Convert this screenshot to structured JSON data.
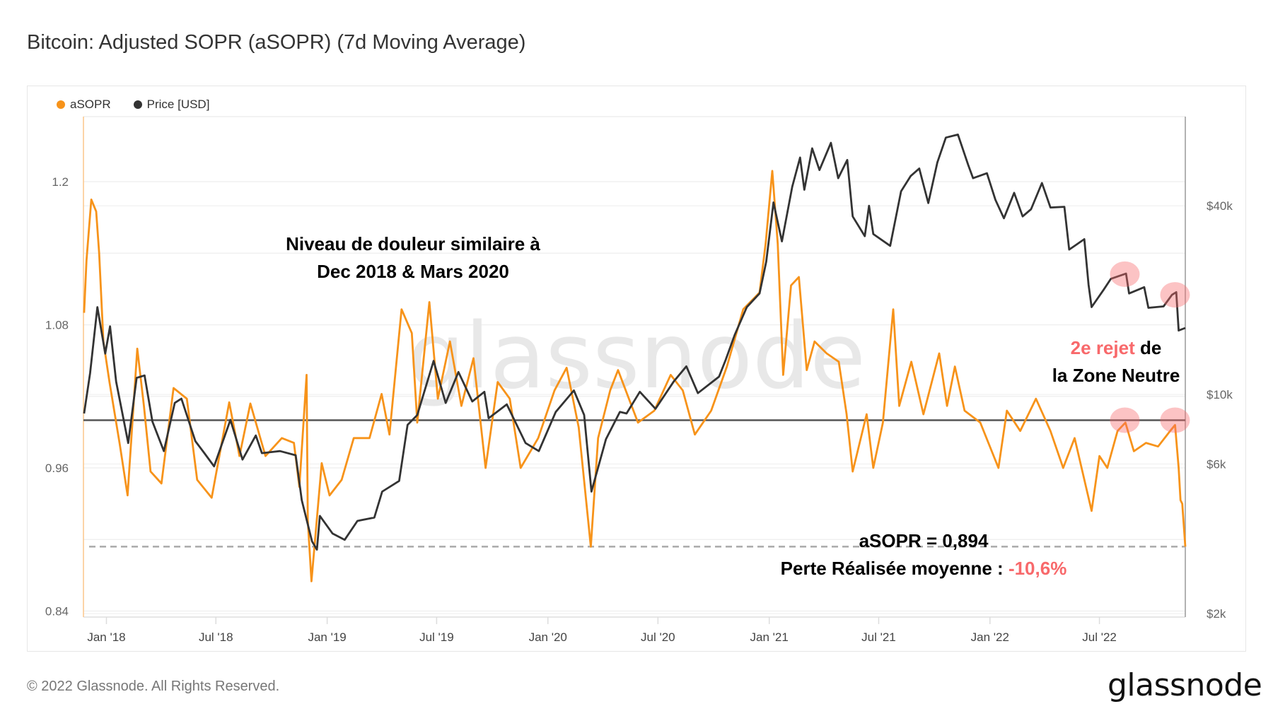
{
  "title": "Bitcoin: Adjusted SOPR (aSOPR) (7d Moving Average)",
  "footer": "© 2022 Glassnode. All Rights Reserved.",
  "logo": "glassnode",
  "watermark": "glassnode",
  "annotations": {
    "pain_line1": "Niveau de douleur similaire à",
    "pain_line2": "Dec 2018 & Mars 2020",
    "reject_red": "2e rejet",
    "reject_black": " de",
    "reject_line2": "la Zone Neutre",
    "asopr_value": "aSOPR = 0,894",
    "loss_label": "Perte Réalisée moyenne : ",
    "loss_value": "-10,6%"
  },
  "colors": {
    "asopr": "#f7931a",
    "price": "#333333",
    "highlight": "#f8696b",
    "accent_red": "#f8696b"
  },
  "chart_data": {
    "type": "line",
    "title": "Bitcoin: Adjusted SOPR (aSOPR) (7d Moving Average)",
    "legend": [
      "aSOPR",
      "Price [USD]"
    ],
    "legend_position": "top-left",
    "grid": true,
    "x_range": [
      "2017-11-24",
      "2022-11-20"
    ],
    "x_ticks": [
      "Jan '18",
      "Jul '18",
      "Jan '19",
      "Jul '19",
      "Jan '20",
      "Jul '20",
      "Jan '21",
      "Jul '21",
      "Jan '22",
      "Jul '22"
    ],
    "x_tick_dates": [
      "2018-01-01",
      "2018-07-01",
      "2019-01-01",
      "2019-07-01",
      "2020-01-01",
      "2020-07-01",
      "2021-01-01",
      "2021-07-01",
      "2022-01-01",
      "2022-07-01"
    ],
    "y_left": {
      "ticks": [
        "1.2",
        "1.08",
        "0.96",
        "0.84"
      ],
      "range": [
        0.835,
        1.2545
      ]
    },
    "y_right": {
      "scale": "log",
      "ticks": [
        "$40k",
        "$10k",
        "$6k",
        "$2k"
      ],
      "tick_values": [
        40000,
        10000,
        6000,
        2000
      ],
      "range": [
        1950,
        77000
      ]
    },
    "reference_lines": [
      {
        "value": 1.0,
        "style": "solid"
      },
      {
        "value": 0.894,
        "style": "dashed"
      }
    ],
    "highlights": [
      {
        "date": "2022-08-12",
        "series": "price",
        "value": 24200
      },
      {
        "date": "2022-11-03",
        "series": "price",
        "value": 20800
      },
      {
        "date": "2022-08-12",
        "series": "asopr",
        "value": 1.0
      },
      {
        "date": "2022-11-03",
        "series": "asopr",
        "value": 1.0
      }
    ],
    "series": [
      {
        "name": "aSOPR",
        "axis": "left",
        "points": [
          [
            "2017-11-25",
            1.09
          ],
          [
            "2017-11-29",
            1.134
          ],
          [
            "2017-12-07",
            1.185
          ],
          [
            "2017-12-15",
            1.175
          ],
          [
            "2017-12-20",
            1.14
          ],
          [
            "2017-12-27",
            1.066
          ],
          [
            "2018-01-06",
            1.032
          ],
          [
            "2018-01-23",
            0.98
          ],
          [
            "2018-02-05",
            0.937
          ],
          [
            "2018-02-21",
            1.06
          ],
          [
            "2018-03-04",
            1.012
          ],
          [
            "2018-03-15",
            0.957
          ],
          [
            "2018-04-02",
            0.947
          ],
          [
            "2018-04-22",
            1.027
          ],
          [
            "2018-05-14",
            1.018
          ],
          [
            "2018-05-31",
            0.95
          ],
          [
            "2018-06-24",
            0.935
          ],
          [
            "2018-07-23",
            1.015
          ],
          [
            "2018-08-09",
            0.97
          ],
          [
            "2018-08-27",
            1.014
          ],
          [
            "2018-09-21",
            0.97
          ],
          [
            "2018-10-18",
            0.985
          ],
          [
            "2018-11-07",
            0.981
          ],
          [
            "2018-11-16",
            0.944
          ],
          [
            "2018-11-28",
            1.038
          ],
          [
            "2018-11-30",
            0.916
          ],
          [
            "2018-12-06",
            0.865
          ],
          [
            "2018-12-23",
            0.964
          ],
          [
            "2019-01-05",
            0.937
          ],
          [
            "2019-01-25",
            0.95
          ],
          [
            "2019-02-14",
            0.985
          ],
          [
            "2019-03-12",
            0.985
          ],
          [
            "2019-04-01",
            1.022
          ],
          [
            "2019-04-14",
            0.988
          ],
          [
            "2019-05-04",
            1.093
          ],
          [
            "2019-05-21",
            1.073
          ],
          [
            "2019-05-30",
            0.998
          ],
          [
            "2019-06-19",
            1.099
          ],
          [
            "2019-07-03",
            1.018
          ],
          [
            "2019-07-23",
            1.066
          ],
          [
            "2019-08-11",
            1.012
          ],
          [
            "2019-08-31",
            1.052
          ],
          [
            "2019-09-20",
            0.96
          ],
          [
            "2019-10-10",
            1.032
          ],
          [
            "2019-10-30",
            1.018
          ],
          [
            "2019-11-17",
            0.96
          ],
          [
            "2019-12-16",
            0.985
          ],
          [
            "2020-01-12",
            1.025
          ],
          [
            "2020-02-01",
            1.044
          ],
          [
            "2020-02-21",
            0.994
          ],
          [
            "2020-03-12",
            0.894
          ],
          [
            "2020-03-24",
            0.985
          ],
          [
            "2020-04-13",
            1.025
          ],
          [
            "2020-04-26",
            1.042
          ],
          [
            "2020-05-29",
            0.998
          ],
          [
            "2020-06-25",
            1.008
          ],
          [
            "2020-07-22",
            1.038
          ],
          [
            "2020-08-11",
            1.025
          ],
          [
            "2020-08-31",
            0.988
          ],
          [
            "2020-09-27",
            1.008
          ],
          [
            "2020-10-23",
            1.045
          ],
          [
            "2020-11-19",
            1.093
          ],
          [
            "2020-12-16",
            1.107
          ],
          [
            "2020-12-26",
            1.148
          ],
          [
            "2021-01-06",
            1.209
          ],
          [
            "2021-01-15",
            1.148
          ],
          [
            "2021-01-24",
            1.038
          ],
          [
            "2021-02-06",
            1.113
          ],
          [
            "2021-02-19",
            1.12
          ],
          [
            "2021-03-04",
            1.042
          ],
          [
            "2021-03-17",
            1.066
          ],
          [
            "2021-04-06",
            1.056
          ],
          [
            "2021-04-26",
            1.049
          ],
          [
            "2021-05-09",
            1.005
          ],
          [
            "2021-05-19",
            0.957
          ],
          [
            "2021-06-11",
            1.005
          ],
          [
            "2021-06-22",
            0.96
          ],
          [
            "2021-07-08",
            0.998
          ],
          [
            "2021-07-25",
            1.093
          ],
          [
            "2021-08-04",
            1.012
          ],
          [
            "2021-08-24",
            1.049
          ],
          [
            "2021-09-13",
            1.005
          ],
          [
            "2021-10-09",
            1.056
          ],
          [
            "2021-10-22",
            1.012
          ],
          [
            "2021-11-04",
            1.045
          ],
          [
            "2021-11-20",
            1.008
          ],
          [
            "2021-12-16",
            0.998
          ],
          [
            "2022-01-15",
            0.96
          ],
          [
            "2022-01-29",
            1.008
          ],
          [
            "2022-02-20",
            0.991
          ],
          [
            "2022-03-18",
            1.018
          ],
          [
            "2022-04-11",
            0.991
          ],
          [
            "2022-05-02",
            0.96
          ],
          [
            "2022-05-21",
            0.985
          ],
          [
            "2022-06-18",
            0.924
          ],
          [
            "2022-07-01",
            0.97
          ],
          [
            "2022-07-14",
            0.96
          ],
          [
            "2022-07-31",
            0.991
          ],
          [
            "2022-08-13",
            0.998
          ],
          [
            "2022-08-27",
            0.974
          ],
          [
            "2022-09-16",
            0.981
          ],
          [
            "2022-10-06",
            0.978
          ],
          [
            "2022-10-26",
            0.991
          ],
          [
            "2022-11-03",
            0.996
          ],
          [
            "2022-11-09",
            0.96
          ],
          [
            "2022-11-12",
            0.933
          ],
          [
            "2022-11-15",
            0.93
          ],
          [
            "2022-11-20",
            0.894
          ]
        ]
      },
      {
        "name": "Price [USD]",
        "axis": "right",
        "points": [
          [
            "2017-11-25",
            8700
          ],
          [
            "2017-12-05",
            11700
          ],
          [
            "2017-12-17",
            19000
          ],
          [
            "2017-12-30",
            13500
          ],
          [
            "2018-01-07",
            16500
          ],
          [
            "2018-01-17",
            11000
          ],
          [
            "2018-02-06",
            7000
          ],
          [
            "2018-02-20",
            11300
          ],
          [
            "2018-03-05",
            11500
          ],
          [
            "2018-03-18",
            8200
          ],
          [
            "2018-04-06",
            6600
          ],
          [
            "2018-04-24",
            9400
          ],
          [
            "2018-05-05",
            9700
          ],
          [
            "2018-05-28",
            7100
          ],
          [
            "2018-06-12",
            6500
          ],
          [
            "2018-06-28",
            5900
          ],
          [
            "2018-07-25",
            8300
          ],
          [
            "2018-08-14",
            6200
          ],
          [
            "2018-09-05",
            7400
          ],
          [
            "2018-09-15",
            6500
          ],
          [
            "2018-10-15",
            6600
          ],
          [
            "2018-11-10",
            6400
          ],
          [
            "2018-11-20",
            4600
          ],
          [
            "2018-12-07",
            3400
          ],
          [
            "2018-12-15",
            3200
          ],
          [
            "2018-12-20",
            4100
          ],
          [
            "2019-01-10",
            3600
          ],
          [
            "2019-01-30",
            3440
          ],
          [
            "2019-02-20",
            3950
          ],
          [
            "2019-03-20",
            4050
          ],
          [
            "2019-04-02",
            4900
          ],
          [
            "2019-04-30",
            5300
          ],
          [
            "2019-05-14",
            8000
          ],
          [
            "2019-05-30",
            8600
          ],
          [
            "2019-06-26",
            12800
          ],
          [
            "2019-07-16",
            9400
          ],
          [
            "2019-08-06",
            11800
          ],
          [
            "2019-08-29",
            9500
          ],
          [
            "2019-09-18",
            10200
          ],
          [
            "2019-09-25",
            8400
          ],
          [
            "2019-10-25",
            9300
          ],
          [
            "2019-11-25",
            7000
          ],
          [
            "2019-12-17",
            6600
          ],
          [
            "2020-01-14",
            8800
          ],
          [
            "2020-02-13",
            10300
          ],
          [
            "2020-03-01",
            8600
          ],
          [
            "2020-03-13",
            4900
          ],
          [
            "2020-04-06",
            7200
          ],
          [
            "2020-04-29",
            8800
          ],
          [
            "2020-05-10",
            8700
          ],
          [
            "2020-06-01",
            10200
          ],
          [
            "2020-06-27",
            9000
          ],
          [
            "2020-07-27",
            11000
          ],
          [
            "2020-08-17",
            12300
          ],
          [
            "2020-09-05",
            10100
          ],
          [
            "2020-10-10",
            11400
          ],
          [
            "2020-10-21",
            12900
          ],
          [
            "2020-11-05",
            15500
          ],
          [
            "2020-11-25",
            19000
          ],
          [
            "2020-12-16",
            21000
          ],
          [
            "2020-12-27",
            26500
          ],
          [
            "2021-01-08",
            41000
          ],
          [
            "2021-01-22",
            30800
          ],
          [
            "2021-02-08",
            46000
          ],
          [
            "2021-02-21",
            57000
          ],
          [
            "2021-02-28",
            45000
          ],
          [
            "2021-03-13",
            61000
          ],
          [
            "2021-03-25",
            52000
          ],
          [
            "2021-04-13",
            63500
          ],
          [
            "2021-04-25",
            49000
          ],
          [
            "2021-05-10",
            56000
          ],
          [
            "2021-05-19",
            37000
          ],
          [
            "2021-06-08",
            32000
          ],
          [
            "2021-06-15",
            40000
          ],
          [
            "2021-06-22",
            32500
          ],
          [
            "2021-07-20",
            29800
          ],
          [
            "2021-08-07",
            44500
          ],
          [
            "2021-08-23",
            49800
          ],
          [
            "2021-09-06",
            52600
          ],
          [
            "2021-09-21",
            40800
          ],
          [
            "2021-10-06",
            55000
          ],
          [
            "2021-10-20",
            66000
          ],
          [
            "2021-11-09",
            67500
          ],
          [
            "2021-11-26",
            54000
          ],
          [
            "2021-12-04",
            49000
          ],
          [
            "2021-12-27",
            50800
          ],
          [
            "2022-01-10",
            41800
          ],
          [
            "2022-01-24",
            36500
          ],
          [
            "2022-02-10",
            44000
          ],
          [
            "2022-02-24",
            37000
          ],
          [
            "2022-03-10",
            39000
          ],
          [
            "2022-03-28",
            47300
          ],
          [
            "2022-04-11",
            39500
          ],
          [
            "2022-05-04",
            39700
          ],
          [
            "2022-05-12",
            29000
          ],
          [
            "2022-06-06",
            31300
          ],
          [
            "2022-06-13",
            22400
          ],
          [
            "2022-06-18",
            19000
          ],
          [
            "2022-07-08",
            21600
          ],
          [
            "2022-07-20",
            23400
          ],
          [
            "2022-08-14",
            24300
          ],
          [
            "2022-08-19",
            21000
          ],
          [
            "2022-09-13",
            22000
          ],
          [
            "2022-09-20",
            18900
          ],
          [
            "2022-10-15",
            19100
          ],
          [
            "2022-10-29",
            20800
          ],
          [
            "2022-11-05",
            21200
          ],
          [
            "2022-11-09",
            16000
          ],
          [
            "2022-11-20",
            16300
          ]
        ]
      }
    ]
  }
}
